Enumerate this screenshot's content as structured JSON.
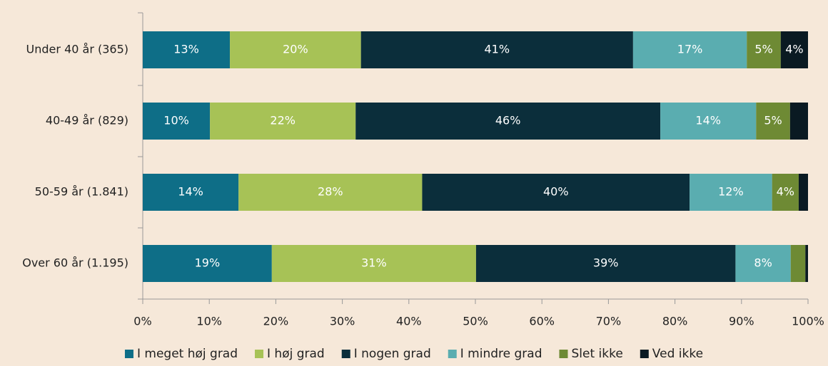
{
  "chart_data": {
    "type": "stacked-bar-horizontal",
    "categories": [
      "Under 40 år (365)",
      "40-49 år (829)",
      "50-59 år (1.841)",
      "Over 60 år (1.195)"
    ],
    "series": [
      {
        "name": "I meget høj grad",
        "color": "#0e6e87",
        "values": [
          13.1,
          10.1,
          14.4,
          19.4
        ],
        "value_labels": [
          "13%",
          "10%",
          "14%",
          "19%"
        ]
      },
      {
        "name": "I høj grad",
        "color": "#a7c256",
        "values": [
          19.7,
          21.9,
          27.6,
          30.7
        ],
        "value_labels": [
          "20%",
          "22%",
          "28%",
          "31%"
        ]
      },
      {
        "name": "I nogen grad",
        "color": "#0b2e3b",
        "values": [
          40.9,
          45.8,
          40.2,
          39.0
        ],
        "value_labels": [
          "41%",
          "46%",
          "40%",
          "39%"
        ]
      },
      {
        "name": "I mindre grad",
        "color": "#5aadb0",
        "values": [
          17.1,
          14.4,
          12.4,
          8.3
        ],
        "value_labels": [
          "17%",
          "14%",
          "12%",
          "8%"
        ]
      },
      {
        "name": "Slet ikke",
        "color": "#6e8a34",
        "values": [
          5.1,
          5.1,
          4.0,
          2.2
        ],
        "value_labels": [
          "5%",
          "5%",
          "4%",
          null
        ]
      },
      {
        "name": "Ved ikke",
        "color": "#0a1a22",
        "values": [
          4.1,
          2.7,
          1.4,
          0.4
        ],
        "value_labels": [
          "4%",
          null,
          null,
          null
        ]
      }
    ],
    "xlim": [
      0,
      100
    ],
    "xticks": [
      {
        "value": 0,
        "label": "0%"
      },
      {
        "value": 10,
        "label": "10%"
      },
      {
        "value": 20,
        "label": "20%"
      },
      {
        "value": 30,
        "label": "30%"
      },
      {
        "value": 40,
        "label": "40%"
      },
      {
        "value": 50,
        "label": "50%"
      },
      {
        "value": 60,
        "label": "60%"
      },
      {
        "value": 70,
        "label": "70%"
      },
      {
        "value": 80,
        "label": "80%"
      },
      {
        "value": 90,
        "label": "90%"
      },
      {
        "value": 100,
        "label": "100%"
      }
    ],
    "legend": "bottom"
  }
}
